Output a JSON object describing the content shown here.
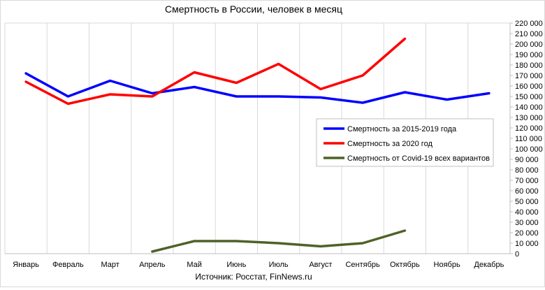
{
  "chart_data": {
    "type": "line",
    "title": "Смертность в России, человек в месяц",
    "source": "Источник: Росстат, FinNews.ru",
    "categories": [
      "Январь",
      "Февраль",
      "Март",
      "Апрель",
      "Май",
      "Июнь",
      "Июль",
      "Август",
      "Сентябрь",
      "Октябрь",
      "Ноябрь",
      "Декабрь"
    ],
    "ylim": [
      0,
      220000
    ],
    "ytick_step": 10000,
    "ytick_labels": [
      "0",
      "10 000",
      "20 000",
      "30 000",
      "40 000",
      "50 000",
      "60 000",
      "70 000",
      "80 000",
      "90 000",
      "100 000",
      "110 000",
      "120 000",
      "130 000",
      "140 000",
      "150 000",
      "160 000",
      "170 000",
      "180 000",
      "190 000",
      "200 000",
      "210 000",
      "220 000"
    ],
    "y_axis_side": "right",
    "grid": "vertical",
    "legend_position": "center-right",
    "series": [
      {
        "name": "Смертность за 2015-2019  года",
        "color": "#0000ff",
        "values": [
          172000,
          150000,
          165000,
          153000,
          159000,
          150000,
          150000,
          149000,
          144000,
          154000,
          147000,
          153000
        ]
      },
      {
        "name": "Смертность за 2020  год",
        "color": "#ff0000",
        "values": [
          164000,
          143000,
          152000,
          150000,
          173000,
          163000,
          181000,
          157000,
          170000,
          205000,
          null,
          null
        ]
      },
      {
        "name": "Смертность от Covid-19 всех вариантов",
        "color": "#4f6228",
        "values": [
          null,
          null,
          null,
          2000,
          12000,
          12000,
          10000,
          7000,
          10000,
          22000,
          null,
          null
        ]
      }
    ]
  }
}
